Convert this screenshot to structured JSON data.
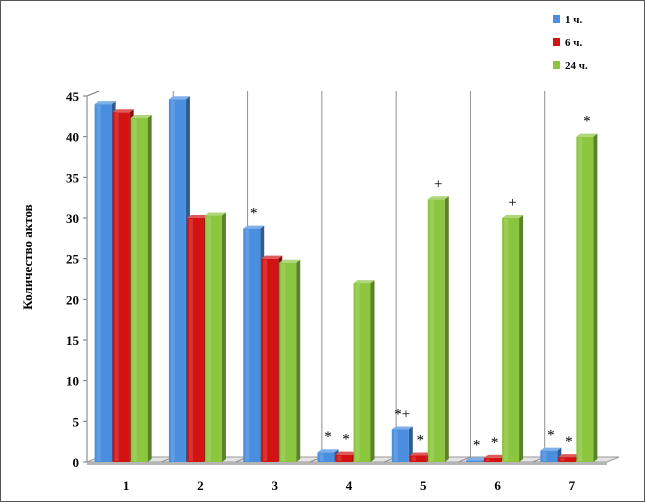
{
  "chart_data": {
    "type": "bar",
    "categories": [
      "1",
      "2",
      "3",
      "4",
      "5",
      "6",
      "7"
    ],
    "series": [
      {
        "name": "1 ч.",
        "values": [
          44,
          44.6,
          28.7,
          1.2,
          4.0,
          0.2,
          1.4
        ]
      },
      {
        "name": "6 ч.",
        "values": [
          43,
          30,
          25,
          0.9,
          0.8,
          0.5,
          0.6
        ]
      },
      {
        "name": "24 ч.",
        "values": [
          42.3,
          30.3,
          24.5,
          22,
          32.3,
          30,
          40
        ]
      }
    ],
    "ylabel": "Количество актов",
    "xlabel": "",
    "ylim": [
      0,
      45
    ],
    "yticks": [
      "0",
      "5",
      "10",
      "15",
      "20",
      "25",
      "30",
      "35",
      "40",
      "45"
    ],
    "legend_position": "top-right",
    "grid": "vertical category separators",
    "colors": {
      "s1": "#4a8ee0",
      "s2": "#d31212",
      "s3": "#8cc63f"
    },
    "annotations": [
      {
        "category": 3,
        "series": 1,
        "text": "*"
      },
      {
        "category": 4,
        "series": 1,
        "text": "*"
      },
      {
        "category": 4,
        "series": 2,
        "text": "*"
      },
      {
        "category": 5,
        "series": 1,
        "text": "*+"
      },
      {
        "category": 5,
        "series": 2,
        "text": "*"
      },
      {
        "category": 5,
        "series": 3,
        "text": "+"
      },
      {
        "category": 6,
        "series": 1,
        "text": "*"
      },
      {
        "category": 6,
        "series": 2,
        "text": "*"
      },
      {
        "category": 6,
        "series": 3,
        "text": "+"
      },
      {
        "category": 7,
        "series": 1,
        "text": "*"
      },
      {
        "category": 7,
        "series": 2,
        "text": "*"
      },
      {
        "category": 7,
        "series": 3,
        "text": "*"
      }
    ]
  }
}
